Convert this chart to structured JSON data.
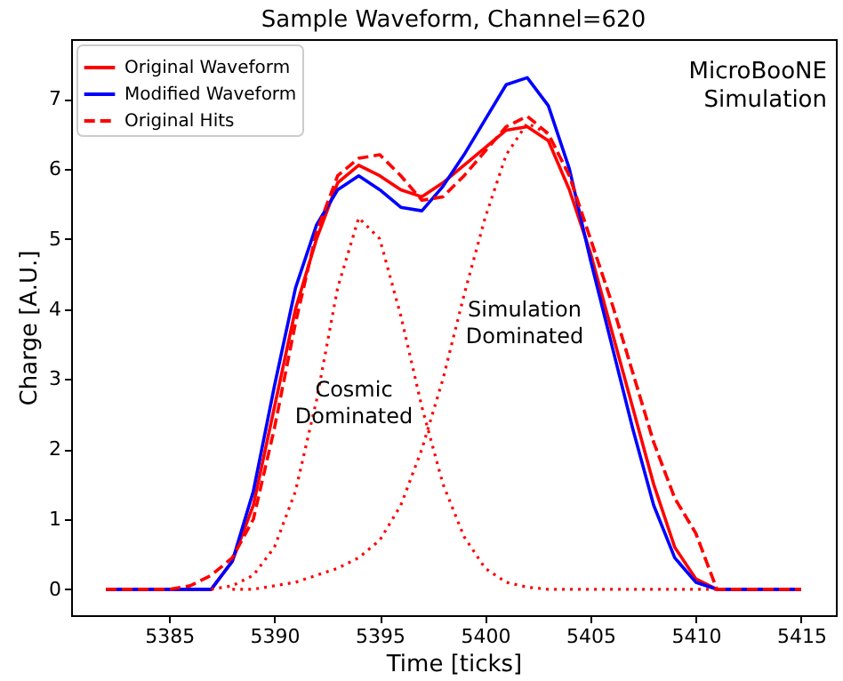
{
  "chart_data": {
    "type": "line",
    "title": "Sample Waveform, Channel=620",
    "xlabel": "Time [ticks]",
    "ylabel": "Charge [A.U.]",
    "x": [
      5382,
      5383,
      5384,
      5385,
      5386,
      5387,
      5388,
      5389,
      5390,
      5391,
      5392,
      5393,
      5394,
      5395,
      5396,
      5397,
      5398,
      5399,
      5400,
      5401,
      5402,
      5403,
      5404,
      5405,
      5406,
      5407,
      5408,
      5409,
      5410,
      5411,
      5412,
      5413,
      5414,
      5415
    ],
    "series": [
      {
        "name": "Original Waveform",
        "color": "#ff0000",
        "line_style": "solid",
        "values": [
          0,
          0,
          0,
          0,
          0,
          0,
          0.4,
          1.2,
          2.6,
          4.0,
          5.0,
          5.8,
          6.05,
          5.9,
          5.7,
          5.6,
          5.8,
          6.05,
          6.3,
          6.55,
          6.6,
          6.4,
          5.7,
          4.8,
          3.7,
          2.6,
          1.5,
          0.6,
          0.15,
          0,
          0,
          0,
          0,
          0
        ]
      },
      {
        "name": "Modified Waveform",
        "color": "#0000ff",
        "line_style": "solid",
        "values": [
          0,
          0,
          0,
          0,
          0,
          0,
          0.4,
          1.4,
          2.9,
          4.3,
          5.2,
          5.7,
          5.9,
          5.7,
          5.45,
          5.4,
          5.75,
          6.2,
          6.7,
          7.2,
          7.3,
          6.9,
          6.0,
          4.7,
          3.5,
          2.3,
          1.2,
          0.45,
          0.1,
          0,
          0,
          0,
          0,
          0
        ]
      },
      {
        "name": "Original Hits",
        "color": "#ff0000",
        "line_style": "dashed",
        "values": [
          0,
          0,
          0,
          0,
          0.05,
          0.2,
          0.45,
          1.0,
          2.3,
          3.8,
          5.1,
          5.9,
          6.15,
          6.2,
          5.9,
          5.55,
          5.6,
          5.9,
          6.25,
          6.6,
          6.75,
          6.5,
          5.9,
          5.0,
          4.1,
          3.1,
          2.1,
          1.3,
          0.8,
          0,
          0,
          0,
          0,
          0
        ]
      },
      {
        "color": "#ff0000",
        "line_style": "dotted",
        "values": [
          null,
          null,
          null,
          null,
          null,
          0,
          0.05,
          0.2,
          0.6,
          1.4,
          2.7,
          4.3,
          5.3,
          5.0,
          3.9,
          2.6,
          1.5,
          0.75,
          0.3,
          0.1,
          0.03,
          0,
          0,
          0,
          0,
          0,
          0,
          0,
          0,
          0,
          null,
          null,
          null,
          null
        ]
      },
      {
        "color": "#ff0000",
        "line_style": "dotted",
        "values": [
          null,
          null,
          null,
          null,
          null,
          null,
          0,
          0,
          0.05,
          0.1,
          0.2,
          0.3,
          0.45,
          0.7,
          1.2,
          2.0,
          3.0,
          4.2,
          5.3,
          6.2,
          6.65,
          6.5,
          5.9,
          5.0,
          4.1,
          3.1,
          2.1,
          1.3,
          0.8,
          0,
          null,
          null,
          null,
          null
        ]
      }
    ],
    "xlim": [
      5380.35,
      5416.65
    ],
    "ylim": [
      -0.37,
      7.85
    ],
    "xticks": [
      5385,
      5390,
      5395,
      5400,
      5405,
      5410,
      5415
    ],
    "yticks": [
      0,
      1,
      2,
      3,
      4,
      5,
      6,
      7
    ],
    "grid": false,
    "legend": "top left",
    "marker": "none",
    "annotations": [
      "MicroBooNE\nSimulation",
      "Cosmic\nDominated",
      "Simulation\nDominated"
    ]
  }
}
